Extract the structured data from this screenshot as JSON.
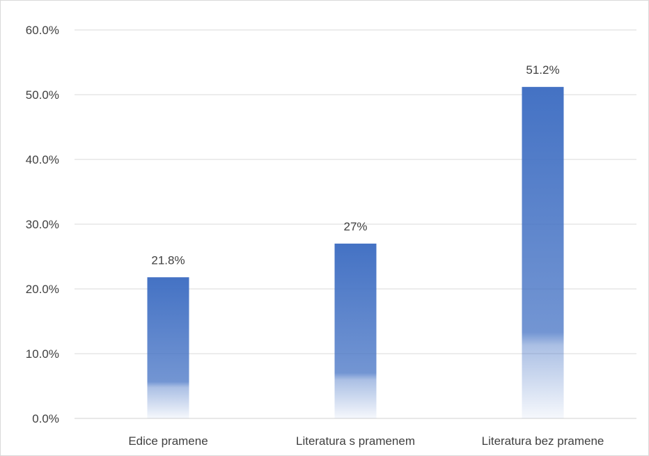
{
  "chart_data": {
    "type": "bar",
    "title": "",
    "xlabel": "",
    "ylabel": "",
    "categories": [
      "Edice pramene",
      "Literatura s pramenem",
      "Literatura bez pramene"
    ],
    "values": [
      21.8,
      27,
      51.2
    ],
    "data_labels": [
      "21.8%",
      "27%",
      "51.2%"
    ],
    "ylim": [
      0,
      60
    ],
    "y_ticks": [
      0,
      10,
      20,
      30,
      40,
      50,
      60
    ],
    "y_tick_labels": [
      "0.0%",
      "10.0%",
      "20.0%",
      "30.0%",
      "40.0%",
      "50.0%",
      "60.0%"
    ],
    "grid": true,
    "legend": "none",
    "bar_color_top": "#4472c4",
    "bar_color_bottom": "#ffffff",
    "grid_color": "#d9d9d9",
    "axis_color": "#d9d9d9",
    "text_color": "#404040"
  }
}
